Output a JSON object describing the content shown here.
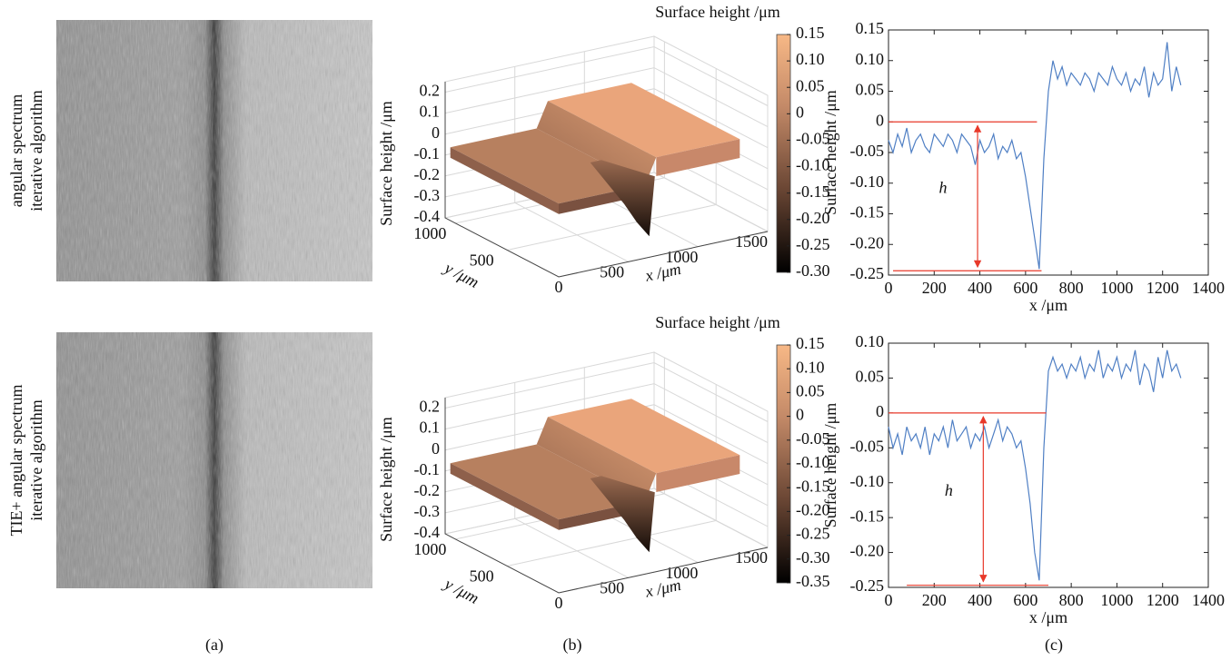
{
  "row_labels": [
    [
      "angular spectrum",
      "iterative algorithm"
    ],
    [
      "TIE+ angular spectrum",
      "iterative algorithm"
    ]
  ],
  "panel_labels": [
    "(a)",
    "(b)",
    "(c)"
  ],
  "chart_data": [
    {
      "type": "surface3d",
      "colorbar_title": "Surface height /μm",
      "zlabel": "Surface height /μm",
      "xlabel": "x /μm",
      "ylabel": "y /μm",
      "xlim": [
        0,
        1500
      ],
      "ylim": [
        0,
        1100
      ],
      "zlim": [
        -0.4,
        0.25
      ],
      "xticks": [
        500,
        1000,
        1500
      ],
      "yticks": [
        0,
        500,
        1000
      ],
      "zticks": [
        0.2,
        0.1,
        0,
        -0.1,
        -0.2,
        -0.3,
        -0.4
      ],
      "clim": [
        -0.3,
        0.15
      ],
      "cticks": [
        0.15,
        {
          "value": 0.1,
          "label": "0.10"
        },
        0.05,
        0,
        -0.05,
        {
          "value": -0.1,
          "label": "-0.10"
        },
        -0.15,
        {
          "value": -0.2,
          "label": "-0.20"
        },
        -0.25,
        {
          "value": -0.3,
          "label": "-0.30"
        }
      ]
    },
    {
      "type": "line",
      "xlabel": "x /μm",
      "ylabel": "Surface height /μm",
      "color": "#4f7fc4",
      "xlim": [
        0,
        1400
      ],
      "ylim": [
        -0.25,
        0.15
      ],
      "xticks": [
        0,
        200,
        400,
        600,
        800,
        1000,
        1200,
        1400
      ],
      "yticks": [
        0.15,
        {
          "value": 0.1,
          "label": "0.10"
        },
        0.05,
        0,
        -0.05,
        {
          "value": -0.1,
          "label": "-0.10"
        },
        -0.15,
        {
          "value": -0.2,
          "label": "-0.20"
        },
        -0.25
      ],
      "x": [
        0,
        20,
        40,
        60,
        80,
        100,
        120,
        140,
        160,
        180,
        200,
        220,
        240,
        260,
        280,
        300,
        320,
        340,
        360,
        380,
        400,
        420,
        440,
        460,
        480,
        500,
        520,
        540,
        560,
        580,
        600,
        620,
        640,
        660,
        680,
        700,
        720,
        740,
        760,
        780,
        800,
        820,
        840,
        860,
        880,
        900,
        920,
        940,
        960,
        980,
        1000,
        1020,
        1040,
        1060,
        1080,
        1100,
        1120,
        1140,
        1160,
        1180,
        1200,
        1220,
        1240,
        1260,
        1280
      ],
      "values": [
        -0.03,
        -0.05,
        -0.02,
        -0.04,
        -0.01,
        -0.05,
        -0.03,
        -0.02,
        -0.04,
        -0.05,
        -0.02,
        -0.03,
        -0.04,
        -0.02,
        -0.03,
        -0.05,
        -0.02,
        -0.03,
        -0.04,
        -0.07,
        -0.03,
        -0.05,
        -0.04,
        -0.02,
        -0.06,
        -0.04,
        -0.05,
        -0.03,
        -0.06,
        -0.05,
        -0.09,
        -0.14,
        -0.19,
        -0.24,
        -0.06,
        0.05,
        0.1,
        0.07,
        0.09,
        0.06,
        0.08,
        0.07,
        0.06,
        0.08,
        0.07,
        0.05,
        0.08,
        0.07,
        0.06,
        0.09,
        0.07,
        0.06,
        0.08,
        0.05,
        0.07,
        0.06,
        0.09,
        0.04,
        0.08,
        0.06,
        0.07,
        0.13,
        0.05,
        0.09,
        0.06
      ],
      "reference_color": "#e8392a",
      "reference_lines": [
        {
          "y": 0,
          "x0": 0,
          "x1": 650
        },
        {
          "y": -0.243,
          "x0": 20,
          "x1": 670
        }
      ],
      "arrow_x": 390,
      "annotation": "h"
    },
    {
      "type": "surface3d",
      "colorbar_title": "Surface height /μm",
      "zlabel": "Surface height /μm",
      "xlabel": "x /μm",
      "ylabel": "y /μm",
      "xlim": [
        0,
        1500
      ],
      "ylim": [
        0,
        1100
      ],
      "zlim": [
        -0.4,
        0.25
      ],
      "xticks": [
        500,
        1000,
        1500
      ],
      "yticks": [
        0,
        500,
        1000
      ],
      "zticks": [
        0.2,
        0.1,
        0,
        -0.1,
        -0.2,
        -0.3,
        -0.4
      ],
      "clim": [
        -0.35,
        0.15
      ],
      "cticks": [
        0.15,
        {
          "value": 0.1,
          "label": "0.10"
        },
        0.05,
        0,
        -0.05,
        {
          "value": -0.1,
          "label": "-0.10"
        },
        -0.15,
        {
          "value": -0.2,
          "label": "-0.20"
        },
        -0.25,
        {
          "value": -0.3,
          "label": "-0.30"
        },
        -0.35
      ]
    },
    {
      "type": "line",
      "xlabel": "x /μm",
      "ylabel": "Surface height /μm",
      "color": "#4f7fc4",
      "xlim": [
        0,
        1400
      ],
      "ylim": [
        -0.25,
        0.1
      ],
      "xticks": [
        0,
        200,
        400,
        600,
        800,
        1000,
        1200,
        1400
      ],
      "yticks": [
        {
          "value": 0.1,
          "label": "0.10"
        },
        0.05,
        0,
        -0.05,
        {
          "value": -0.1,
          "label": "-0.10"
        },
        -0.15,
        {
          "value": -0.2,
          "label": "-0.20"
        },
        -0.25
      ],
      "x": [
        0,
        20,
        40,
        60,
        80,
        100,
        120,
        140,
        160,
        180,
        200,
        220,
        240,
        260,
        280,
        300,
        320,
        340,
        360,
        380,
        400,
        420,
        440,
        460,
        480,
        500,
        520,
        540,
        560,
        580,
        600,
        620,
        640,
        660,
        680,
        700,
        720,
        740,
        760,
        780,
        800,
        820,
        840,
        860,
        880,
        900,
        920,
        940,
        960,
        980,
        1000,
        1020,
        1040,
        1060,
        1080,
        1100,
        1120,
        1140,
        1160,
        1180,
        1200,
        1220,
        1240,
        1260,
        1280
      ],
      "values": [
        -0.02,
        -0.05,
        -0.03,
        -0.06,
        -0.02,
        -0.04,
        -0.03,
        -0.05,
        -0.02,
        -0.06,
        -0.03,
        -0.04,
        -0.02,
        -0.05,
        -0.01,
        -0.04,
        -0.03,
        -0.02,
        -0.05,
        -0.03,
        -0.04,
        -0.02,
        -0.05,
        -0.03,
        -0.01,
        -0.04,
        -0.02,
        -0.03,
        -0.05,
        -0.04,
        -0.08,
        -0.13,
        -0.2,
        -0.24,
        -0.05,
        0.06,
        0.08,
        0.06,
        0.07,
        0.05,
        0.07,
        0.06,
        0.08,
        0.05,
        0.07,
        0.06,
        0.09,
        0.05,
        0.07,
        0.06,
        0.08,
        0.05,
        0.07,
        0.06,
        0.09,
        0.04,
        0.07,
        0.06,
        0.03,
        0.08,
        0.05,
        0.09,
        0.06,
        0.07,
        0.05
      ],
      "reference_color": "#e8392a",
      "reference_lines": [
        {
          "y": 0,
          "x0": 0,
          "x1": 690
        },
        {
          "y": -0.247,
          "x0": 80,
          "x1": 700
        }
      ],
      "arrow_x": 415,
      "annotation": "h"
    }
  ]
}
